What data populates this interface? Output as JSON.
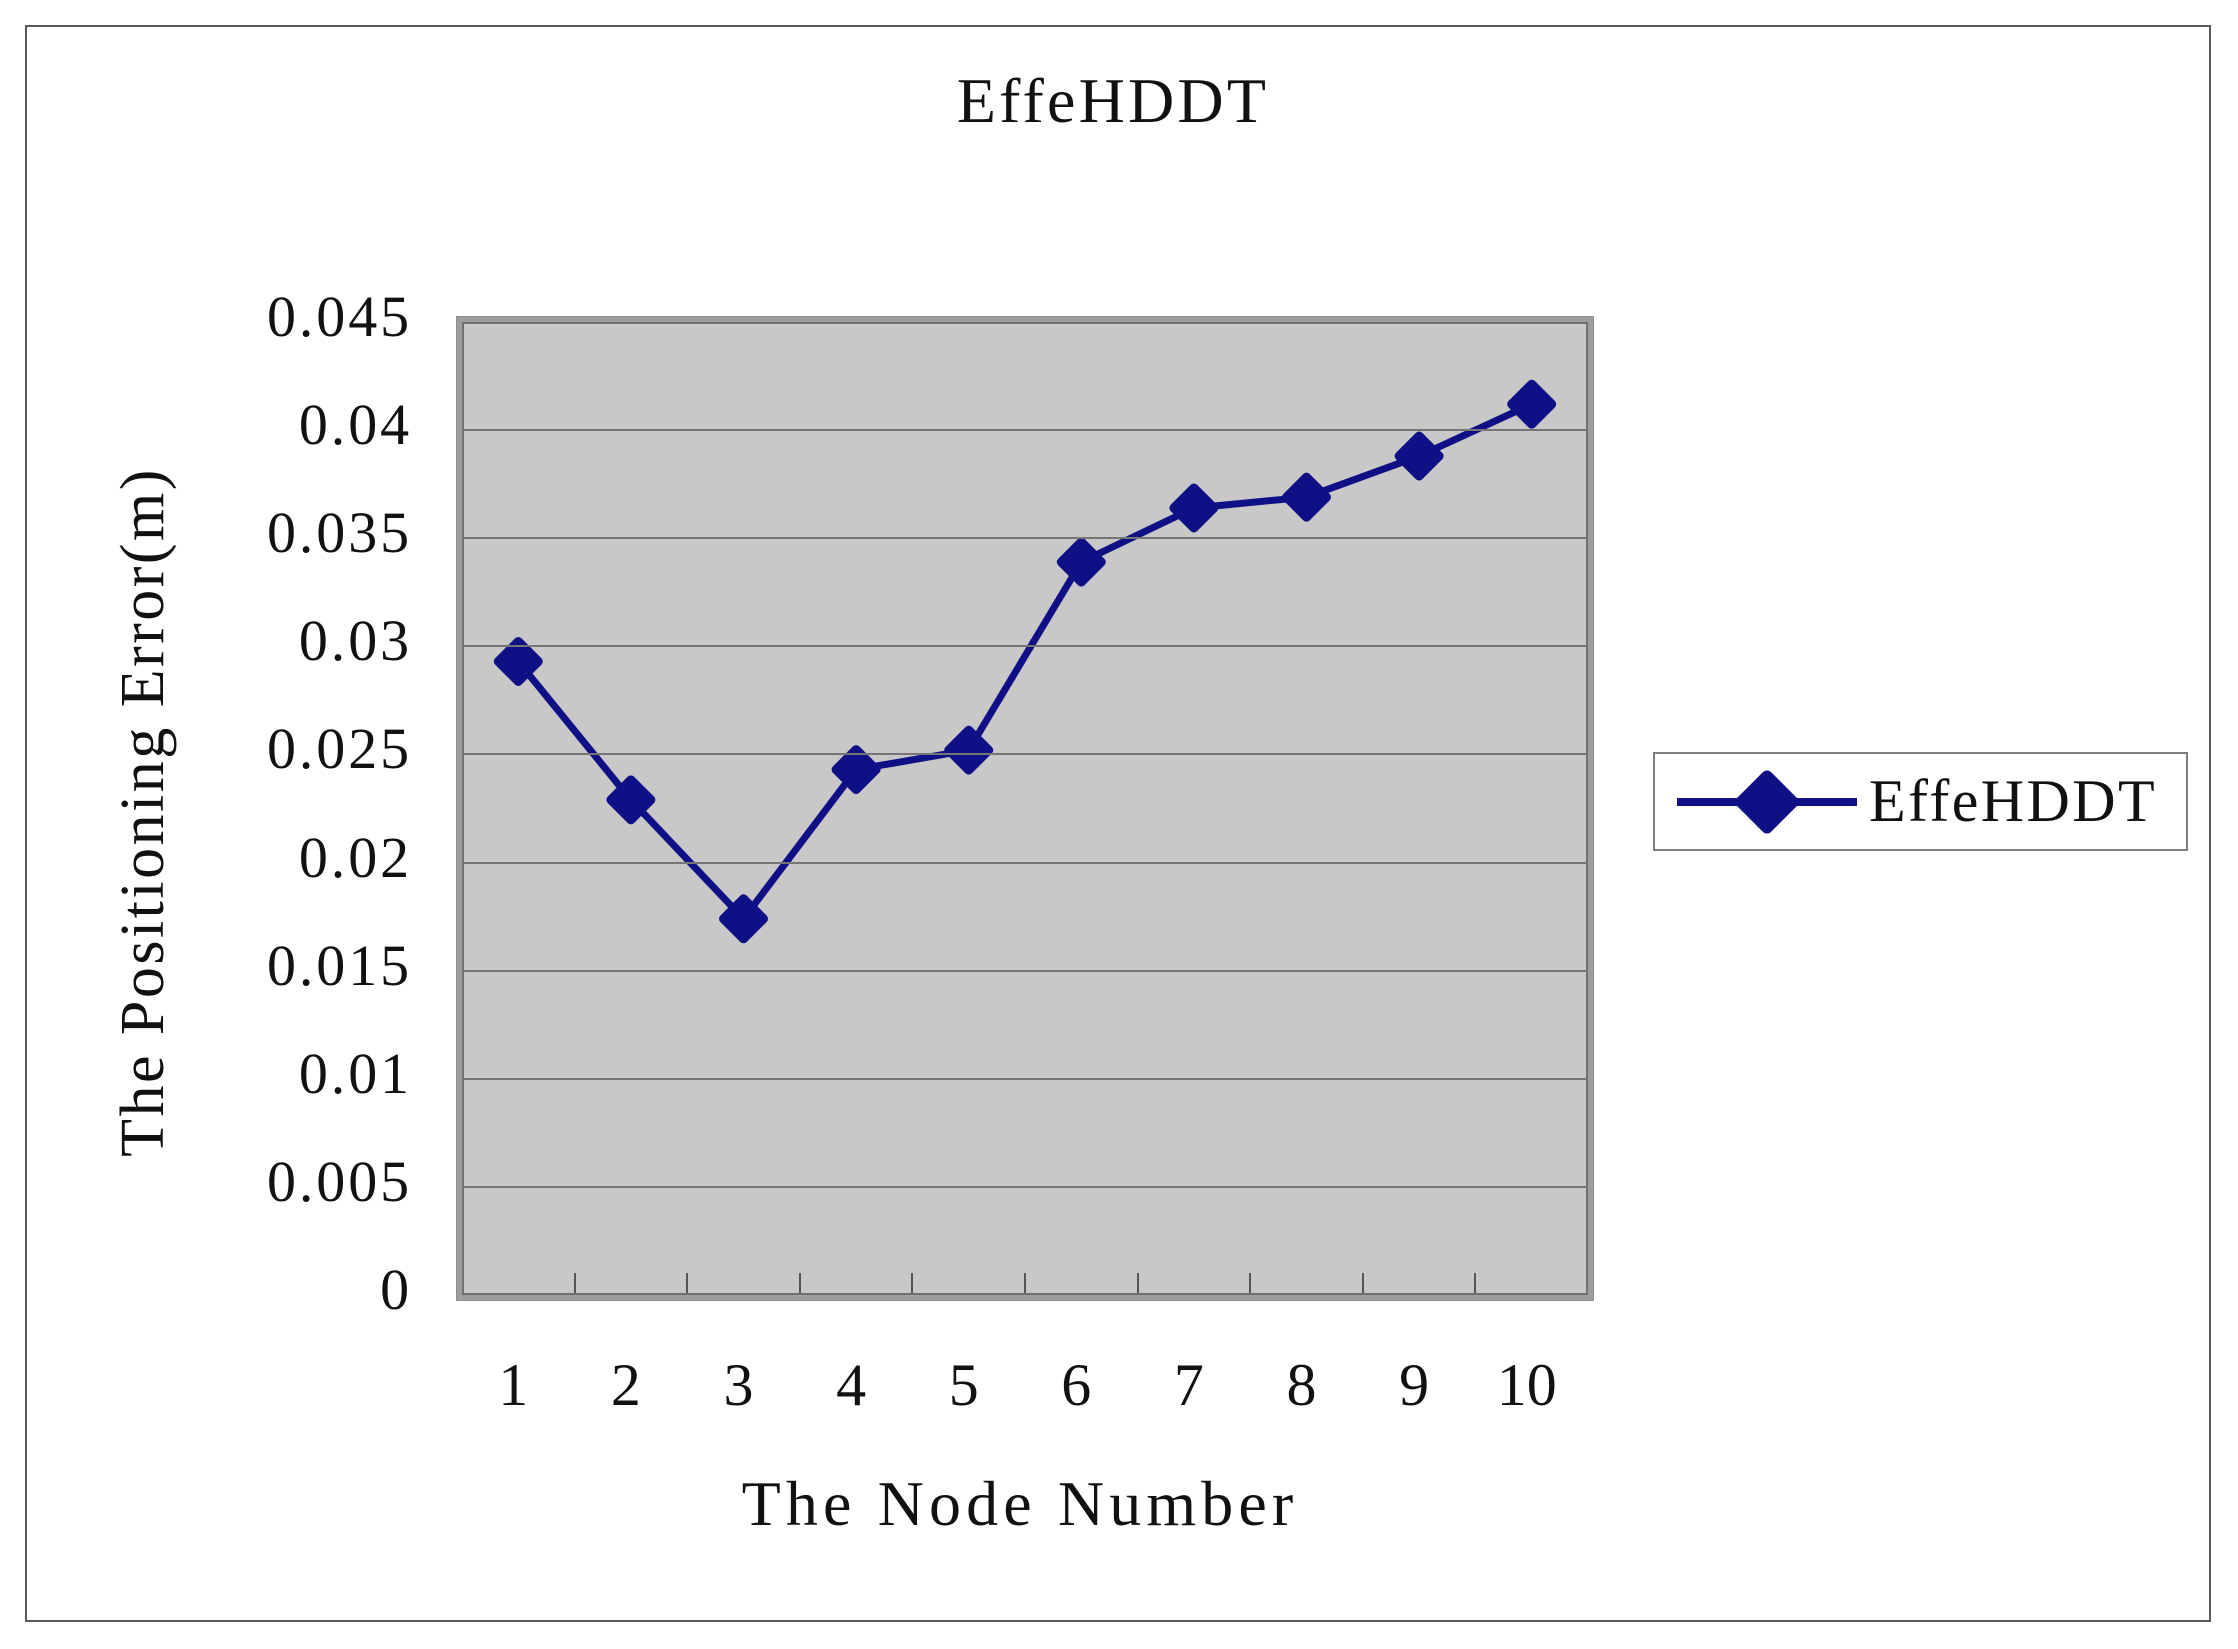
{
  "chart_data": {
    "type": "line",
    "title": "EffeHDDT",
    "xlabel": "The Node Number",
    "ylabel": "The Positioning Error(m)",
    "categories": [
      "1",
      "2",
      "3",
      "4",
      "5",
      "6",
      "7",
      "8",
      "9",
      "10"
    ],
    "series": [
      {
        "name": "EffeHDDT",
        "values": [
          0.0293,
          0.0229,
          0.0174,
          0.0243,
          0.0252,
          0.0339,
          0.0364,
          0.0369,
          0.0388,
          0.0412
        ],
        "color": "#101086",
        "marker": "diamond"
      }
    ],
    "ylim": [
      0,
      0.045
    ],
    "ytick_step": 0.005,
    "ytick_labels": [
      "0",
      "0.005",
      "0.01",
      "0.015",
      "0.02",
      "0.025",
      "0.03",
      "0.035",
      "0.04",
      "0.045"
    ],
    "grid": "horizontal-only",
    "legend_position": "right",
    "colors": {
      "plot_background": "#c8c8c8",
      "gridline": "#757575",
      "series": "#101086",
      "text": "#111111",
      "plot_border": "#9d9d9d",
      "outer_frame": "#5a5a5a",
      "legend_border": "#7f7f7f"
    }
  },
  "legend": {
    "label": "EffeHDDT"
  }
}
